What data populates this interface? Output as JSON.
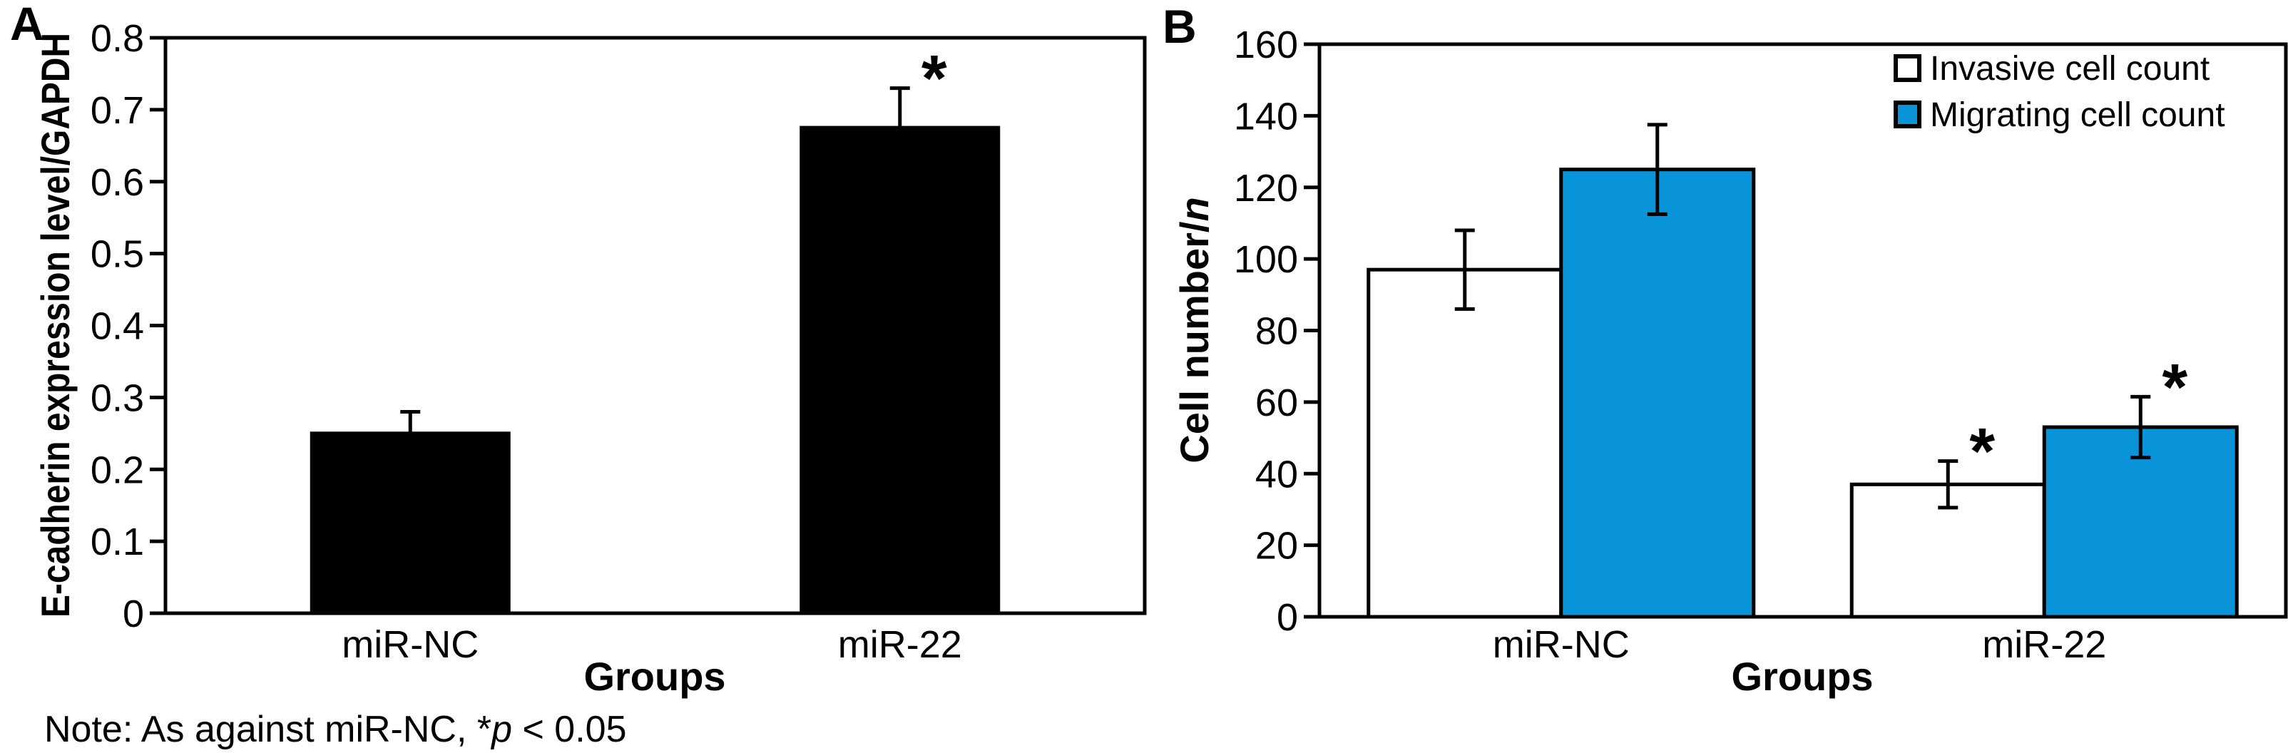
{
  "figure": {
    "background": "#ffffff",
    "note_prefix": "Note: As against miR-NC, *",
    "note_p": "p",
    "note_suffix": " < 0.05"
  },
  "chart_data": [
    {
      "id": "A",
      "panel_label": "A",
      "type": "bar",
      "xlabel": "Groups",
      "ylabel": "E-cadherin expression level/GAPDH",
      "categories": [
        "miR-NC",
        "miR-22"
      ],
      "series": [
        {
          "name": "E-cadherin expression level/GAPDH",
          "color": "#000000",
          "values": [
            0.25,
            0.675
          ],
          "errors": [
            0.03,
            0.055
          ],
          "significant": [
            false,
            true
          ]
        }
      ],
      "ylim": [
        0,
        0.8
      ],
      "ytick_values": [
        0,
        0.1,
        0.2,
        0.3,
        0.4,
        0.5,
        0.6,
        0.7,
        0.8
      ],
      "ytick_labels": [
        "0",
        "0.1",
        "0.2",
        "0.3",
        "0.4",
        "0.5",
        "0.6",
        "0.7",
        "0.8"
      ],
      "error_style": "upper",
      "sig_marker": "*",
      "grid": false,
      "legend_position": "none"
    },
    {
      "id": "B",
      "panel_label": "B",
      "type": "bar",
      "xlabel": "Groups",
      "ylabel": "Cell number/n",
      "ylabel_main": "Cell number/",
      "ylabel_italic": "n",
      "categories": [
        "miR-NC",
        "miR-22"
      ],
      "series": [
        {
          "name": "Invasive cell count",
          "color": "#FFFFFF",
          "values": [
            97,
            37
          ],
          "errors": [
            11,
            6.5
          ],
          "significant": [
            false,
            true
          ]
        },
        {
          "name": "Migrating cell count",
          "color": "#0994D9",
          "values": [
            125,
            53
          ],
          "errors": [
            12.5,
            8.5
          ],
          "significant": [
            false,
            true
          ]
        }
      ],
      "ylim": [
        0,
        160
      ],
      "ytick_values": [
        0,
        20,
        40,
        60,
        80,
        100,
        120,
        140,
        160
      ],
      "ytick_labels": [
        "0",
        "20",
        "40",
        "60",
        "80",
        "100",
        "120",
        "140",
        "160"
      ],
      "error_style": "both",
      "sig_marker": "*",
      "grid": false,
      "legend_position": "top-right"
    }
  ]
}
